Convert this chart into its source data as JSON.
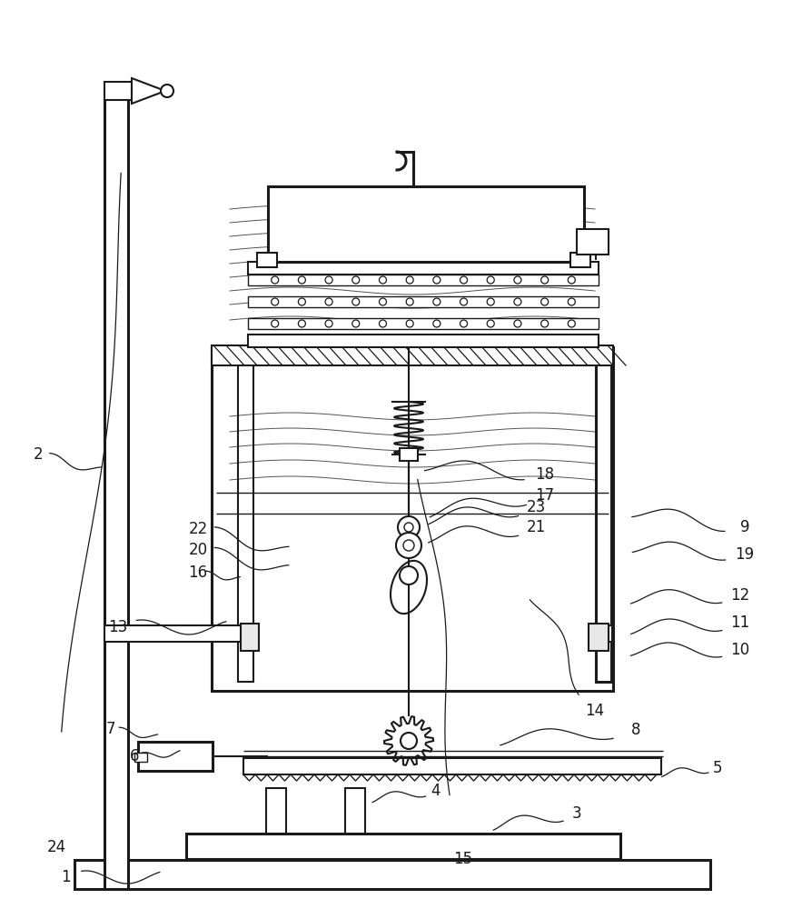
{
  "bg_color": "#ffffff",
  "line_color": "#1a1a1a",
  "label_color": "#1a1a1a",
  "fig_width": 8.95,
  "fig_height": 10.0,
  "labels": {
    "1": [
      72,
      35,
      190,
      35
    ],
    "2": [
      42,
      500,
      120,
      480
    ],
    "3": [
      635,
      105,
      530,
      90
    ],
    "4": [
      480,
      130,
      400,
      120
    ],
    "5": [
      790,
      155,
      720,
      148
    ],
    "6": [
      148,
      168,
      205,
      172
    ],
    "7": [
      122,
      198,
      180,
      188
    ],
    "8": [
      700,
      197,
      530,
      185
    ],
    "9": [
      820,
      420,
      680,
      440
    ],
    "10": [
      815,
      285,
      678,
      285
    ],
    "11": [
      815,
      315,
      678,
      308
    ],
    "12": [
      815,
      345,
      678,
      342
    ],
    "13": [
      130,
      310,
      265,
      310
    ],
    "14": [
      655,
      218,
      580,
      360
    ],
    "15": [
      510,
      55,
      460,
      530
    ],
    "16": [
      218,
      370,
      270,
      362
    ],
    "17": [
      600,
      455,
      455,
      435
    ],
    "18": [
      600,
      478,
      450,
      490
    ],
    "19": [
      820,
      390,
      680,
      400
    ],
    "20": [
      218,
      395,
      330,
      370
    ],
    "21": [
      590,
      420,
      455,
      408
    ],
    "22": [
      218,
      418,
      330,
      390
    ],
    "23": [
      590,
      442,
      455,
      428
    ],
    "24": [
      62,
      68,
      150,
      910
    ]
  }
}
